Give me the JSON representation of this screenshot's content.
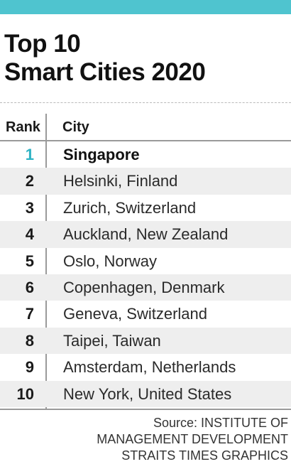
{
  "chart_data": {
    "type": "table",
    "title": [
      "Top 10",
      "Smart Cities 2020"
    ],
    "columns": [
      "Rank",
      "City"
    ],
    "rows": [
      {
        "rank": "1",
        "city": "Singapore"
      },
      {
        "rank": "2",
        "city": "Helsinki, Finland"
      },
      {
        "rank": "3",
        "city": "Zurich, Switzerland"
      },
      {
        "rank": "4",
        "city": "Auckland, New Zealand"
      },
      {
        "rank": "5",
        "city": "Oslo, Norway"
      },
      {
        "rank": "6",
        "city": "Copenhagen, Denmark"
      },
      {
        "rank": "7",
        "city": "Geneva, Switzerland"
      },
      {
        "rank": "8",
        "city": "Taipei, Taiwan"
      },
      {
        "rank": "9",
        "city": "Amsterdam, Netherlands"
      },
      {
        "rank": "10",
        "city": "New York, United States"
      }
    ],
    "highlighted_row": "Singapore",
    "source": [
      "Source: INSTITUTE OF",
      "MANAGEMENT DEVELOPMENT",
      "STRAITS TIMES GRAPHICS"
    ]
  },
  "colors": {
    "accent": "#4fc4cf",
    "highlight_rank": "#2fb3c4",
    "stripe": "#eeeeee"
  }
}
